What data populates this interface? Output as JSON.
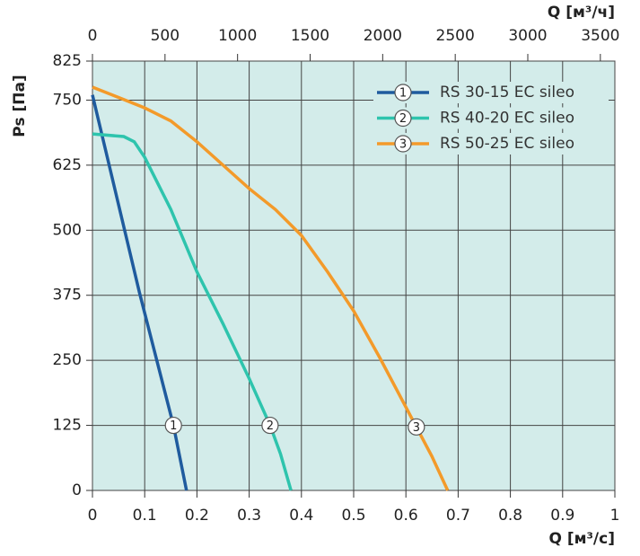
{
  "chart_data": {
    "type": "line",
    "y_label": "Ps [Па]",
    "x_label": "Q [м³/с]",
    "x2_label": "Q [м³/ч]",
    "xlim": [
      0,
      1
    ],
    "xticks": [
      0,
      0.1,
      0.2,
      0.3,
      0.4,
      0.5,
      0.6,
      0.7,
      0.8,
      0.9,
      1
    ],
    "x2lim": [
      0,
      3600
    ],
    "x2ticks": [
      0,
      500,
      1000,
      1500,
      2000,
      2500,
      3000,
      3500
    ],
    "ylim": [
      0,
      825
    ],
    "yticks": [
      0,
      125,
      250,
      375,
      500,
      625,
      750,
      825
    ],
    "grid": true,
    "legend": "upper right",
    "series": [
      {
        "name": "RS 30-15 EC sileo",
        "marker_label": "1",
        "color": "#1f5b9e",
        "marker_x": 0.155,
        "x": [
          0,
          0.09,
          0.155,
          0.18
        ],
        "values": [
          760,
          380,
          125,
          0
        ]
      },
      {
        "name": "RS 40-20 EC sileo",
        "marker_label": "2",
        "color": "#2ec4ad",
        "marker_x": 0.34,
        "x": [
          0,
          0.06,
          0.08,
          0.1,
          0.15,
          0.2,
          0.25,
          0.3,
          0.34,
          0.36,
          0.38
        ],
        "values": [
          685,
          680,
          670,
          640,
          540,
          420,
          320,
          215,
          125,
          70,
          0
        ]
      },
      {
        "name": "RS 50-25 EC sileo",
        "marker_label": "3",
        "color": "#f39a2a",
        "marker_x": 0.62,
        "x": [
          0,
          0.05,
          0.1,
          0.15,
          0.2,
          0.25,
          0.3,
          0.35,
          0.4,
          0.45,
          0.5,
          0.55,
          0.6,
          0.65,
          0.68
        ],
        "values": [
          775,
          755,
          735,
          710,
          670,
          625,
          580,
          540,
          490,
          420,
          345,
          255,
          160,
          65,
          0
        ]
      }
    ]
  }
}
